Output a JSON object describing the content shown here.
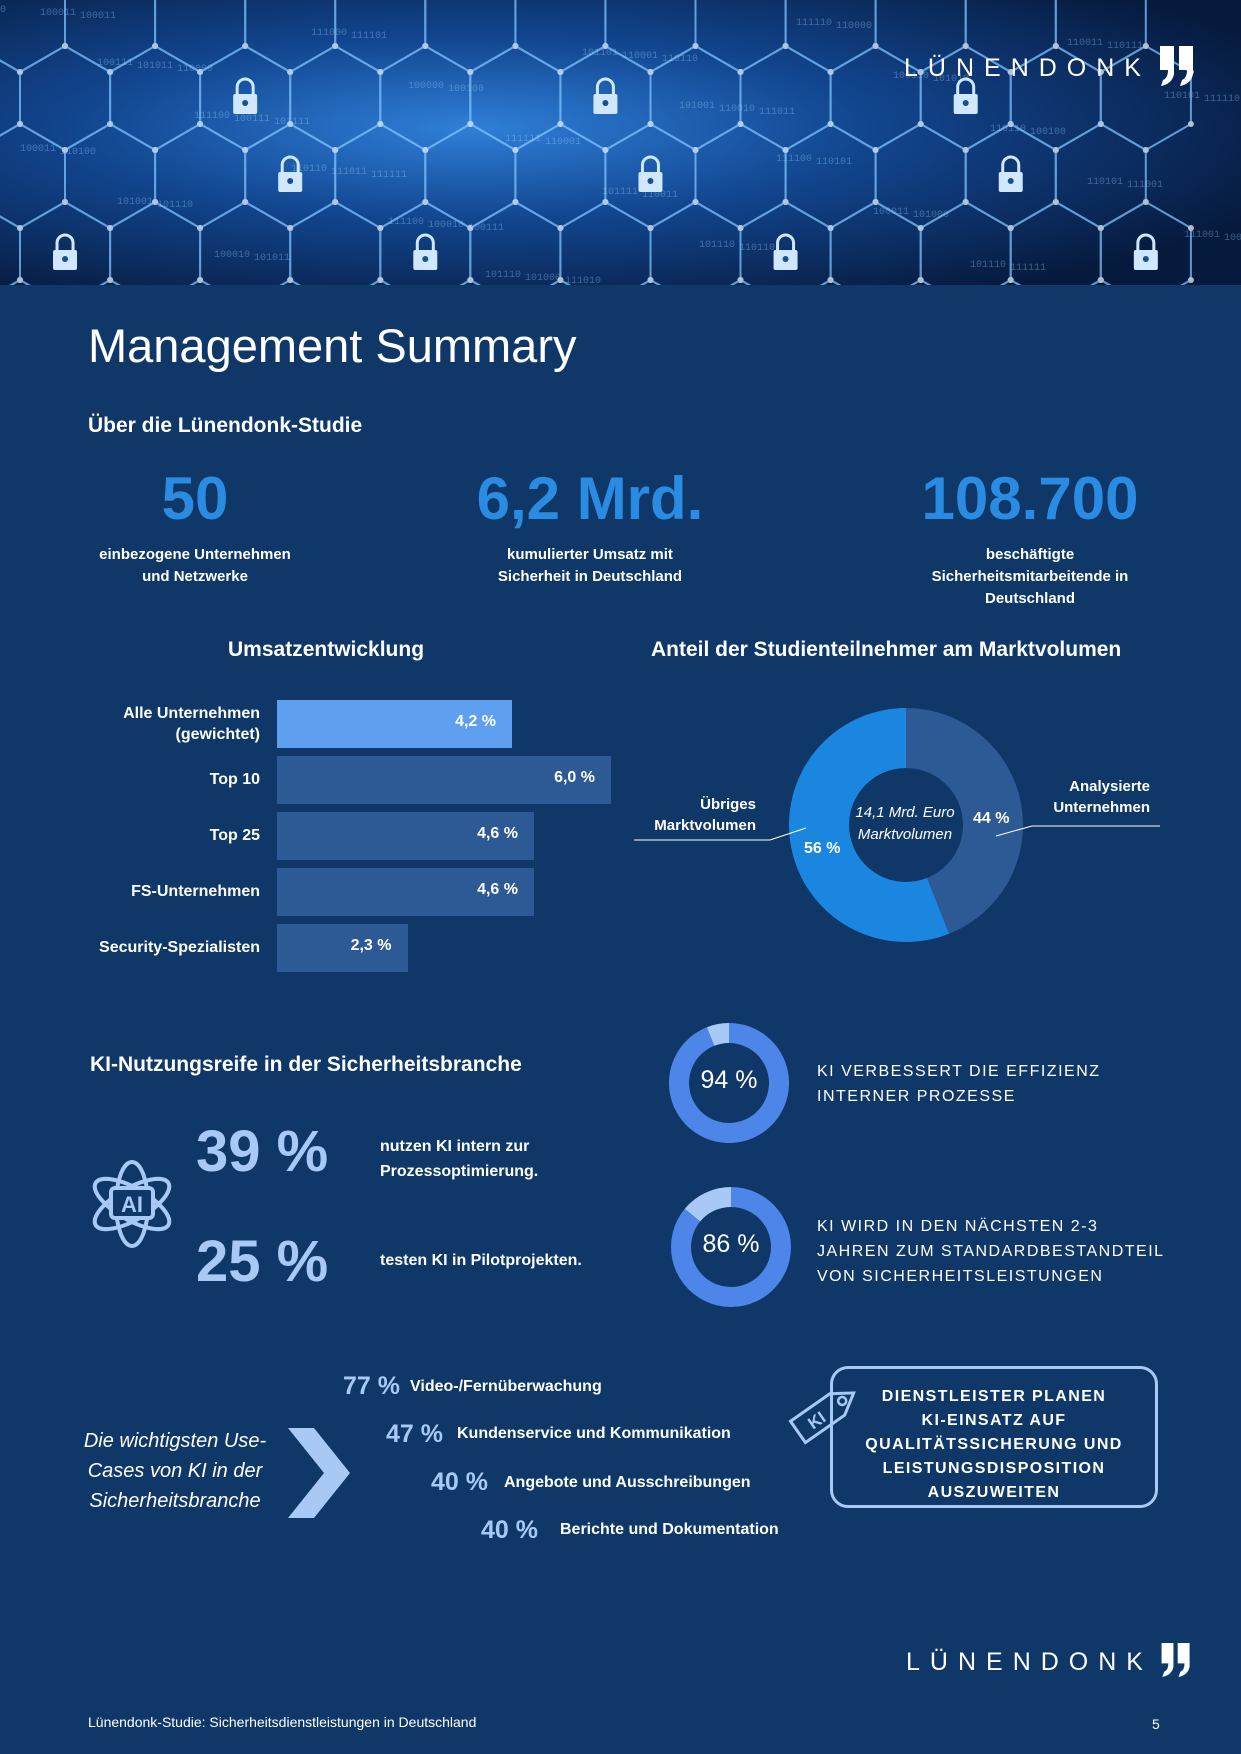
{
  "brand": {
    "name": "LÜNENDONK"
  },
  "title": "Management Summary",
  "study_section": {
    "heading": "Über die Lünendonk-Studie",
    "kpis": [
      {
        "value": "50",
        "caption": [
          "einbezogene Unternehmen",
          "und Netzwerke"
        ]
      },
      {
        "value": "6,2 Mrd.",
        "caption": [
          "kumulierter Umsatz mit",
          "Sicherheit in Deutschland"
        ]
      },
      {
        "value": "108.700",
        "caption": [
          "beschäftigte",
          "Sicherheitsmitarbeitende in",
          "Deutschland"
        ]
      }
    ]
  },
  "chart_data": [
    {
      "type": "bar",
      "title": "Umsatzentwicklung",
      "orientation": "horizontal",
      "categories": [
        "Alle Unternehmen (gewichtet)",
        "Top 10",
        "Top 25",
        "FS-Unternehmen",
        "Security-Spezialisten"
      ],
      "category_lines": [
        [
          "Alle Unternehmen",
          "(gewichtet)"
        ],
        [
          "Top 10"
        ],
        [
          "Top 25"
        ],
        [
          "FS-Unternehmen"
        ],
        [
          "Security-Spezialisten"
        ]
      ],
      "values": [
        4.2,
        6.0,
        4.6,
        4.6,
        2.3
      ],
      "labels": [
        "4,2 %",
        "6,0 %",
        "4,6 %",
        "4,6 %",
        "2,3 %"
      ],
      "highlight_index": 0,
      "colors": {
        "highlight": "#5e9ff0",
        "default": "#2d5a94"
      }
    },
    {
      "type": "pie",
      "title": "Anteil der Studienteilnehmer am Marktvolumen",
      "center_label": [
        "14,1 Mrd. Euro",
        "Marktvolumen"
      ],
      "slices": [
        {
          "label": "Analysierte Unternehmen",
          "label_lines": [
            "Analysierte",
            "Unternehmen"
          ],
          "value": 44,
          "text": "44 %",
          "color": "#2d5a94"
        },
        {
          "label": "Übriges Marktvolumen",
          "label_lines": [
            "Übriges",
            "Marktvolumen"
          ],
          "value": 56,
          "text": "56 %",
          "color": "#1a86e0"
        }
      ]
    },
    {
      "type": "pie",
      "center_label": "94 %",
      "slices": [
        {
          "value": 94,
          "color": "#4d86e8"
        },
        {
          "value": 6,
          "color": "#a8c9f5"
        }
      ],
      "caption": [
        "KI VERBESSERT DIE EFFIZIENZ",
        "INTERNER PROZESSE"
      ]
    },
    {
      "type": "pie",
      "center_label": "86 %",
      "slices": [
        {
          "value": 86,
          "color": "#4d86e8"
        },
        {
          "value": 14,
          "color": "#a8c9f5"
        }
      ],
      "caption": [
        "KI WIRD IN DEN NÄCHSTEN 2-3",
        "JAHREN ZUM STANDARDBESTANDTEIL",
        "VON SICHERHEITSLEISTUNGEN"
      ]
    }
  ],
  "ai_section": {
    "heading": "KI-Nutzungsreife in der Sicherheitsbranche",
    "icon": "ai-atom-icon",
    "stats": [
      {
        "value": "39 %",
        "text": [
          "nutzen KI intern zur",
          "Prozessoptimierung."
        ]
      },
      {
        "value": "25 %",
        "text": [
          "testen KI in Pilotprojekten."
        ]
      }
    ]
  },
  "use_cases": {
    "intro": [
      "Die wichtigsten Use-",
      "Cases von KI in der",
      "Sicherheitsbranche"
    ],
    "items": [
      {
        "pct": "77 %",
        "label": "Video-/Fernüberwachung"
      },
      {
        "pct": "47 %",
        "label": "Kundenservice und Kommunikation"
      },
      {
        "pct": "40 %",
        "label": "Angebote und Ausschreibungen"
      },
      {
        "pct": "40 %",
        "label": "Berichte und Dokumentation"
      }
    ],
    "tag_text": "KI",
    "callout": [
      "DIENSTLEISTER PLANEN",
      "KI-EINSATZ AUF",
      "QUALITÄTSSICHERUNG UND",
      "LEISTUNGSDISPOSITION",
      "AUSZUWEITEN"
    ]
  },
  "footer": {
    "study_name": "Lünendonk-Studie: Sicherheitsdienstleistungen in Deutschland",
    "page_number": "5"
  }
}
